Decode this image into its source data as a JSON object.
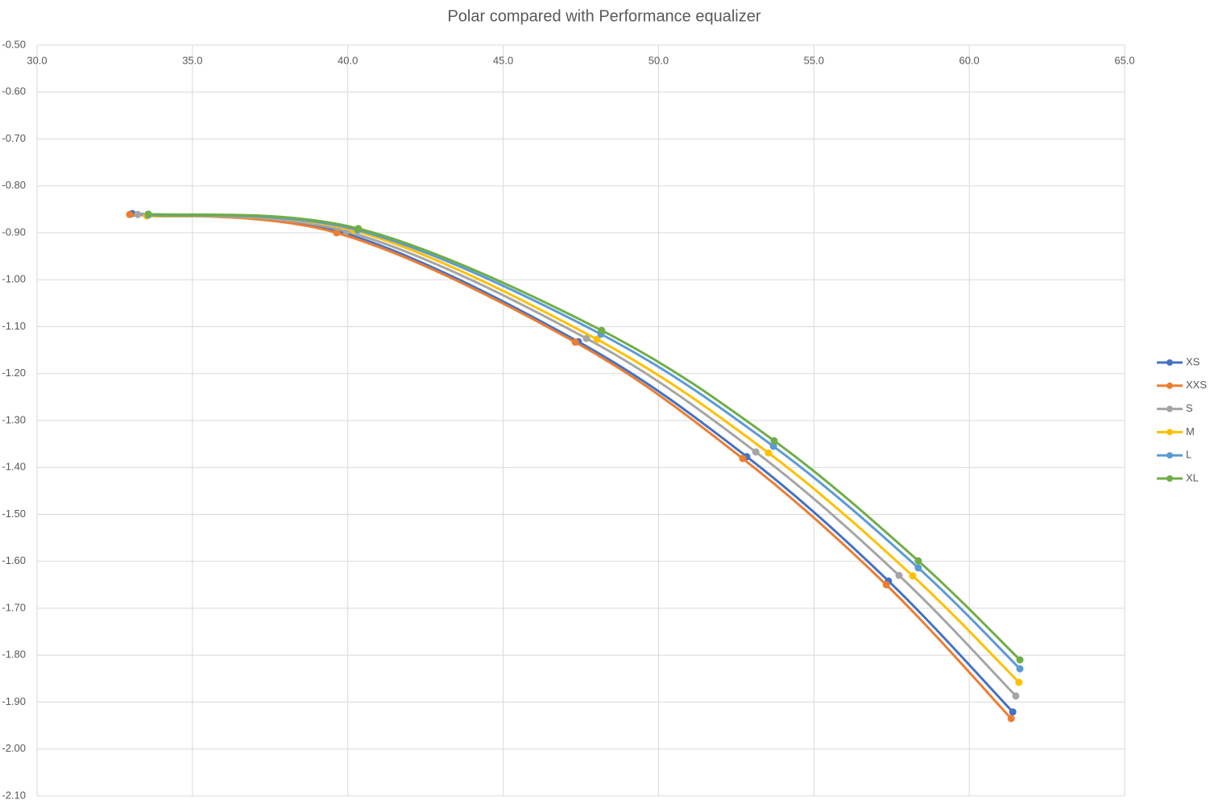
{
  "chart_data": {
    "type": "scatter-smooth",
    "title": "Polar compared with Performance equalizer",
    "xlim": [
      30,
      65
    ],
    "xticks": [
      {
        "value": 30,
        "label": "30.0"
      },
      {
        "value": 35,
        "label": "35.0"
      },
      {
        "value": 40,
        "label": "40.0"
      },
      {
        "value": 45,
        "label": "45.0"
      },
      {
        "value": 50,
        "label": "50.0"
      },
      {
        "value": 55,
        "label": "55.0"
      },
      {
        "value": 60,
        "label": "60.0"
      },
      {
        "value": 65,
        "label": "65.0"
      }
    ],
    "ylim": [
      -2.1,
      -0.5
    ],
    "yticks": [
      {
        "value": -0.5,
        "label": "-0.50"
      },
      {
        "value": -0.6,
        "label": "-0.60"
      },
      {
        "value": -0.7,
        "label": "-0.70"
      },
      {
        "value": -0.8,
        "label": "-0.80"
      },
      {
        "value": -0.9,
        "label": "-0.90"
      },
      {
        "value": -1.0,
        "label": "-1.00"
      },
      {
        "value": -1.1,
        "label": "-1.10"
      },
      {
        "value": -1.2,
        "label": "-1.20"
      },
      {
        "value": -1.3,
        "label": "-1.30"
      },
      {
        "value": -1.4,
        "label": "-1.40"
      },
      {
        "value": -1.5,
        "label": "-1.50"
      },
      {
        "value": -1.6,
        "label": "-1.60"
      },
      {
        "value": -1.7,
        "label": "-1.70"
      },
      {
        "value": -1.8,
        "label": "-1.80"
      },
      {
        "value": -1.9,
        "label": "-1.90"
      },
      {
        "value": -2.0,
        "label": "-2.00"
      },
      {
        "value": -2.1,
        "label": "-2.10"
      }
    ],
    "grid": true,
    "legend": "right",
    "series": [
      {
        "name": "XS",
        "color": "#4472c4",
        "x": [
          33.06,
          39.7,
          47.42,
          52.84,
          57.4,
          61.4
        ],
        "values": [
          -0.859,
          -0.897,
          -1.132,
          -1.377,
          -1.642,
          -1.921
        ]
      },
      {
        "name": "XXS",
        "color": "#ed7d31",
        "x": [
          32.98,
          39.64,
          47.32,
          52.71,
          57.33,
          61.35
        ],
        "values": [
          -0.861,
          -0.9,
          -1.133,
          -1.381,
          -1.65,
          -1.935
        ]
      },
      {
        "name": "S",
        "color": "#a5a5a5",
        "x": [
          33.24,
          39.96,
          47.68,
          53.13,
          57.74,
          61.5
        ],
        "values": [
          -0.861,
          -0.897,
          -1.125,
          -1.367,
          -1.63,
          -1.887
        ]
      },
      {
        "name": "M",
        "color": "#ffc000",
        "x": [
          33.53,
          40.2,
          48.02,
          53.54,
          58.18,
          61.6
        ],
        "values": [
          -0.864,
          -0.895,
          -1.127,
          -1.369,
          -1.631,
          -1.858
        ]
      },
      {
        "name": "L",
        "color": "#5b9bd5",
        "x": [
          33.58,
          40.32,
          48.15,
          53.7,
          58.36,
          61.63
        ],
        "values": [
          -0.862,
          -0.894,
          -1.116,
          -1.355,
          -1.614,
          -1.829
        ]
      },
      {
        "name": "XL",
        "color": "#70ad47",
        "x": [
          33.58,
          40.34,
          48.17,
          53.72,
          58.36,
          61.63
        ],
        "values": [
          -0.86,
          -0.891,
          -1.108,
          -1.343,
          -1.599,
          -1.81
        ]
      }
    ]
  }
}
